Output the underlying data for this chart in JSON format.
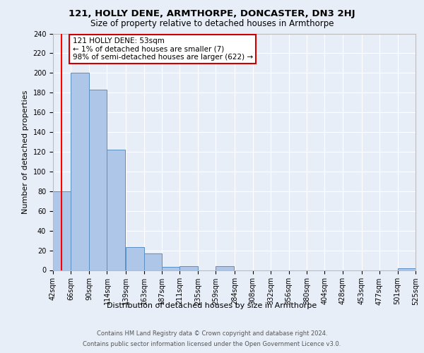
{
  "title1": "121, HOLLY DENE, ARMTHORPE, DONCASTER, DN3 2HJ",
  "title2": "Size of property relative to detached houses in Armthorpe",
  "xlabel": "Distribution of detached houses by size in Armthorpe",
  "ylabel": "Number of detached properties",
  "bins": [
    42,
    66,
    90,
    114,
    139,
    163,
    187,
    211,
    235,
    259,
    284,
    308,
    332,
    356,
    380,
    404,
    428,
    453,
    477,
    501,
    525
  ],
  "bin_labels": [
    "42sqm",
    "66sqm",
    "90sqm",
    "114sqm",
    "139sqm",
    "163sqm",
    "187sqm",
    "211sqm",
    "235sqm",
    "259sqm",
    "284sqm",
    "308sqm",
    "332sqm",
    "356sqm",
    "380sqm",
    "404sqm",
    "428sqm",
    "453sqm",
    "477sqm",
    "501sqm",
    "525sqm"
  ],
  "counts": [
    80,
    200,
    183,
    122,
    23,
    17,
    3,
    4,
    0,
    4,
    0,
    0,
    0,
    0,
    0,
    0,
    0,
    0,
    0,
    2
  ],
  "bar_color": "#aec6e8",
  "bar_edge_color": "#5a8fc2",
  "red_line_x": 53,
  "annotation_text": "121 HOLLY DENE: 53sqm\n← 1% of detached houses are smaller (7)\n98% of semi-detached houses are larger (622) →",
  "annotation_box_color": "#ffffff",
  "annotation_box_edge": "#cc0000",
  "footer1": "Contains HM Land Registry data © Crown copyright and database right 2024.",
  "footer2": "Contains public sector information licensed under the Open Government Licence v3.0.",
  "bg_color": "#e8eef8",
  "plot_bg_color": "#e8eef8",
  "grid_color": "#ffffff",
  "ylim": [
    0,
    240
  ],
  "yticks": [
    0,
    20,
    40,
    60,
    80,
    100,
    120,
    140,
    160,
    180,
    200,
    220,
    240
  ],
  "title1_fontsize": 9.5,
  "title2_fontsize": 8.5,
  "ylabel_fontsize": 8,
  "xlabel_fontsize": 8,
  "tick_fontsize": 7,
  "annot_fontsize": 7.5,
  "footer_fontsize": 6
}
